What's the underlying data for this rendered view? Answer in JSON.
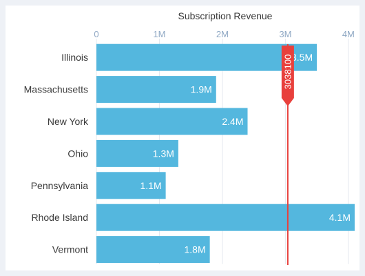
{
  "chart_data": {
    "type": "bar",
    "orientation": "horizontal",
    "title": "Subscription Revenue",
    "categories": [
      "Illinois",
      "Massachusetts",
      "New York",
      "Ohio",
      "Pennsylvania",
      "Rhode Island",
      "Vermont"
    ],
    "values": [
      3500000,
      1900000,
      2400000,
      1300000,
      1100000,
      4100000,
      1800000
    ],
    "data_labels": [
      "3.5M",
      "1.9M",
      "2.4M",
      "1.3M",
      "1.1M",
      "4.1M",
      "1.8M"
    ],
    "x_ticks": [
      0,
      1000000,
      2000000,
      3000000,
      4000000
    ],
    "x_tick_labels": [
      "0",
      "1M",
      "2M",
      "3M",
      "4M"
    ],
    "xlim": [
      0,
      4100000
    ],
    "axis_position": "top",
    "grid": true,
    "reference_line": {
      "value": 3038100,
      "label": "3038100",
      "color": "#e8403c"
    },
    "bar_color": "#54b7de",
    "tick_label_color": "#8fa8c4",
    "category_label_color": "#3a3a3a",
    "data_label_color": "#ffffff"
  }
}
